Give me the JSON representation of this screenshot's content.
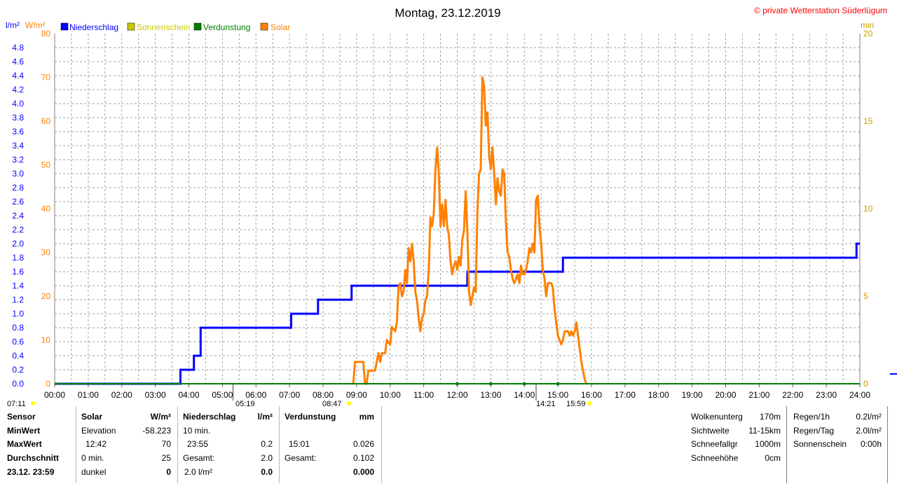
{
  "chart_data": {
    "type": "line",
    "title": "Montag, 23.12.2019",
    "copyright": "© private Wetterstation Süderlügum",
    "left_axis_units": [
      "l/m²",
      "W/m²"
    ],
    "right_axis_unit": "min",
    "legend": [
      {
        "name": "Niederschlag",
        "color": "#0000ff"
      },
      {
        "name": "Sonnenschein",
        "color": "#c8c800"
      },
      {
        "name": "Verdunstung",
        "color": "#008000"
      },
      {
        "name": "Solar",
        "color": "#ff8000"
      }
    ],
    "x_tick_labels": [
      "00:00",
      "01:00",
      "02:00",
      "03:00",
      "04:00",
      "05:00",
      "06:00",
      "07:00",
      "08:00",
      "09:00",
      "10:00",
      "11:00",
      "12:00",
      "13:00",
      "14:00",
      "15:00",
      "16:00",
      "17:00",
      "18:00",
      "19:00",
      "20:00",
      "21:00",
      "22:00",
      "23:00",
      "24:00"
    ],
    "xlim": [
      0,
      24
    ],
    "y_precip_ticks": [
      "0.0",
      "0.2",
      "0.4",
      "0.6",
      "0.8",
      "1.0",
      "1.2",
      "1.4",
      "1.6",
      "1.8",
      "2.0",
      "2.2",
      "2.4",
      "2.6",
      "2.8",
      "3.0",
      "3.2",
      "3.4",
      "3.6",
      "3.8",
      "4.0",
      "4.2",
      "4.4",
      "4.6",
      "4.8"
    ],
    "ylim_precip": [
      0,
      5
    ],
    "y_solar_ticks": [
      "0",
      "10",
      "20",
      "30",
      "40",
      "50",
      "60",
      "70",
      "80"
    ],
    "ylim_solar": [
      0,
      80
    ],
    "y_sun_ticks": [
      "0",
      "5",
      "10",
      "15",
      "20"
    ],
    "ylim_sun": [
      0,
      20
    ],
    "annotations": {
      "sunrise": "07:11",
      "civil_dawn": "05:19",
      "sun_start": "08:47",
      "sun_end": "14:21",
      "sunset_time": "15:59"
    },
    "series": [
      {
        "name": "Niederschlag",
        "color": "#0000ff",
        "points": [
          [
            0,
            0
          ],
          [
            3.75,
            0
          ],
          [
            3.75,
            0.2
          ],
          [
            4.15,
            0.2
          ],
          [
            4.15,
            0.4
          ],
          [
            4.35,
            0.4
          ],
          [
            4.35,
            0.8
          ],
          [
            7.05,
            0.8
          ],
          [
            7.05,
            1.0
          ],
          [
            7.85,
            1.0
          ],
          [
            7.85,
            1.2
          ],
          [
            8.85,
            1.2
          ],
          [
            8.85,
            1.4
          ],
          [
            12.3,
            1.4
          ],
          [
            12.3,
            1.6
          ],
          [
            15.15,
            1.6
          ],
          [
            15.15,
            1.8
          ],
          [
            23.9,
            1.8
          ],
          [
            23.9,
            2.0
          ],
          [
            24,
            2.0
          ]
        ]
      },
      {
        "name": "Solar",
        "color": "#ff8000",
        "points": [
          [
            8.9,
            0
          ],
          [
            8.95,
            5
          ],
          [
            9.2,
            5
          ],
          [
            9.25,
            0
          ],
          [
            9.3,
            0
          ],
          [
            9.35,
            3
          ],
          [
            9.55,
            3
          ],
          [
            9.6,
            5
          ],
          [
            9.65,
            7
          ],
          [
            9.7,
            5
          ],
          [
            9.75,
            7
          ],
          [
            9.85,
            7
          ],
          [
            9.9,
            10
          ],
          [
            10.0,
            9
          ],
          [
            10.05,
            13
          ],
          [
            10.15,
            12
          ],
          [
            10.2,
            14
          ],
          [
            10.25,
            22
          ],
          [
            10.3,
            23
          ],
          [
            10.35,
            20
          ],
          [
            10.4,
            21
          ],
          [
            10.45,
            26
          ],
          [
            10.5,
            23
          ],
          [
            10.55,
            31
          ],
          [
            10.6,
            28
          ],
          [
            10.65,
            32
          ],
          [
            10.7,
            28
          ],
          [
            10.75,
            21
          ],
          [
            10.8,
            19
          ],
          [
            10.85,
            15
          ],
          [
            10.9,
            12
          ],
          [
            10.95,
            15
          ],
          [
            11.0,
            16
          ],
          [
            11.05,
            19
          ],
          [
            11.1,
            20
          ],
          [
            11.15,
            26
          ],
          [
            11.2,
            38
          ],
          [
            11.25,
            36
          ],
          [
            11.3,
            39
          ],
          [
            11.35,
            49
          ],
          [
            11.4,
            54
          ],
          [
            11.45,
            48
          ],
          [
            11.5,
            36
          ],
          [
            11.55,
            41
          ],
          [
            11.6,
            36
          ],
          [
            11.65,
            42
          ],
          [
            11.7,
            36
          ],
          [
            11.75,
            34
          ],
          [
            11.8,
            28
          ],
          [
            11.85,
            25
          ],
          [
            11.9,
            27
          ],
          [
            11.95,
            28
          ],
          [
            12.0,
            26
          ],
          [
            12.05,
            29
          ],
          [
            12.1,
            27
          ],
          [
            12.15,
            33
          ],
          [
            12.2,
            35
          ],
          [
            12.25,
            44
          ],
          [
            12.3,
            35
          ],
          [
            12.35,
            21
          ],
          [
            12.4,
            18
          ],
          [
            12.45,
            20
          ],
          [
            12.5,
            22
          ],
          [
            12.55,
            21
          ],
          [
            12.6,
            39
          ],
          [
            12.65,
            48
          ],
          [
            12.7,
            49
          ],
          [
            12.75,
            70
          ],
          [
            12.8,
            68
          ],
          [
            12.85,
            59
          ],
          [
            12.9,
            62
          ],
          [
            12.95,
            52
          ],
          [
            13.0,
            49
          ],
          [
            13.05,
            54
          ],
          [
            13.1,
            48
          ],
          [
            13.15,
            41
          ],
          [
            13.2,
            47
          ],
          [
            13.25,
            44
          ],
          [
            13.3,
            43
          ],
          [
            13.35,
            49
          ],
          [
            13.4,
            48
          ],
          [
            13.45,
            37
          ],
          [
            13.5,
            30
          ],
          [
            13.55,
            29
          ],
          [
            13.6,
            26
          ],
          [
            13.65,
            24
          ],
          [
            13.7,
            23
          ],
          [
            13.8,
            25
          ],
          [
            13.85,
            23
          ],
          [
            13.9,
            27
          ],
          [
            13.95,
            25
          ],
          [
            14.0,
            25
          ],
          [
            14.05,
            26
          ],
          [
            14.1,
            28
          ],
          [
            14.15,
            31
          ],
          [
            14.2,
            30
          ],
          [
            14.25,
            32
          ],
          [
            14.3,
            30
          ],
          [
            14.35,
            42
          ],
          [
            14.4,
            43
          ],
          [
            14.45,
            36
          ],
          [
            14.5,
            32
          ],
          [
            14.55,
            26
          ],
          [
            14.6,
            24
          ],
          [
            14.65,
            20
          ],
          [
            14.7,
            23
          ],
          [
            14.8,
            23
          ],
          [
            14.85,
            22
          ],
          [
            14.9,
            17
          ],
          [
            14.95,
            14
          ],
          [
            15.0,
            11
          ],
          [
            15.05,
            10
          ],
          [
            15.1,
            9
          ],
          [
            15.15,
            10
          ],
          [
            15.2,
            12
          ],
          [
            15.3,
            12
          ],
          [
            15.35,
            11
          ],
          [
            15.4,
            12
          ],
          [
            15.45,
            11
          ],
          [
            15.5,
            12
          ],
          [
            15.55,
            14
          ],
          [
            15.6,
            11
          ],
          [
            15.65,
            8
          ],
          [
            15.7,
            5
          ],
          [
            15.75,
            3
          ],
          [
            15.8,
            1
          ],
          [
            15.85,
            0
          ]
        ]
      },
      {
        "name": "Verdunstung",
        "color": "#008000",
        "points": [
          [
            0,
            0
          ],
          [
            24,
            0
          ]
        ],
        "markers": [
          12.0,
          13.0,
          14.0,
          15.0
        ]
      }
    ]
  },
  "stats": {
    "row_labels": [
      "Sensor",
      "MinWert",
      "MaxWert",
      "Durchschnitt",
      "23.12. 23:59"
    ],
    "solar": {
      "header": "Solar",
      "unit": "W/m²",
      "rows": [
        [
          "Elevation",
          "-58.223"
        ],
        [
          "12:42",
          "70"
        ],
        [
          "0 min.",
          "25"
        ],
        [
          "dunkel",
          "0"
        ]
      ]
    },
    "precip": {
      "header": "Niederschlag",
      "unit": "l/m²",
      "rows": [
        [
          "10 min.",
          ""
        ],
        [
          "23:55",
          "0.2"
        ],
        [
          "Gesamt:",
          "2.0"
        ],
        [
          "2.0 l/m²",
          "0.0"
        ]
      ]
    },
    "evap": {
      "header": "Verdunstung",
      "unit": "mm",
      "rows": [
        [
          "",
          ""
        ],
        [
          "15:01",
          "0.026"
        ],
        [
          "Gesamt:",
          "0.102"
        ],
        [
          "",
          "0.000"
        ]
      ]
    },
    "cloud": [
      [
        "Wolkenunterg",
        "170m"
      ],
      [
        "Sichtweite",
        "11-15km"
      ],
      [
        "Schneefallgr",
        "1000m"
      ],
      [
        "Schneehöhe",
        "0cm"
      ]
    ],
    "rain": [
      [
        "Regen/1h",
        "0.2l/m²"
      ],
      [
        "Regen/Tag",
        "2.0l/m²"
      ],
      [
        "Sonnenschein",
        "0:00h"
      ]
    ]
  }
}
